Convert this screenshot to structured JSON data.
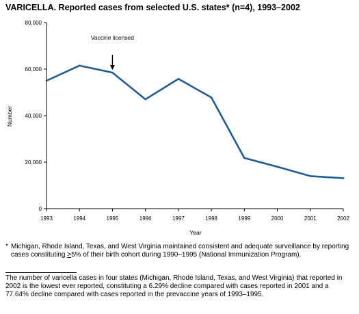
{
  "chart_data": {
    "type": "line",
    "title": "VARICELLA. Reported cases from selected U.S. states* (n=4), 1993–2002",
    "xlabel": "Year",
    "ylabel": "Number",
    "categories": [
      "1993",
      "1994",
      "1995",
      "1996",
      "1997",
      "1998",
      "1999",
      "2000",
      "2001",
      "2002"
    ],
    "series": [
      {
        "values": [
          55000,
          61500,
          58500,
          47000,
          55800,
          47800,
          21800,
          18000,
          14000,
          13100
        ]
      }
    ],
    "ylim": [
      0,
      80000
    ],
    "yticks": [
      0,
      20000,
      40000,
      60000,
      80000
    ],
    "ytick_labels": [
      "0",
      "20,000",
      "40,000",
      "60,000",
      "80,000"
    ],
    "grid": false,
    "line_color": "#1f5b94",
    "annotation": {
      "text": "Vaccine licensed",
      "category": "1995"
    }
  },
  "footnote": {
    "marker": "*",
    "text_before": "Michigan, Rhode Island, Texas, and West Virginia maintained consistent and adequate surveillance by reporting cases constituting ",
    "ge_symbol": ">",
    "text_after": "5% of their birth cohort during 1990–1995 (National Immunization Program)."
  },
  "summary": "The number of varicella cases in four states (Michigan, Rhode Island, Texas, and West Virginia) that reported in 2002 is the lowest ever reported, constituting a 6.29% decline compared with cases reported in 2001 and a 77.64% decline compared with cases reported in the prevaccine years of 1993–1995."
}
